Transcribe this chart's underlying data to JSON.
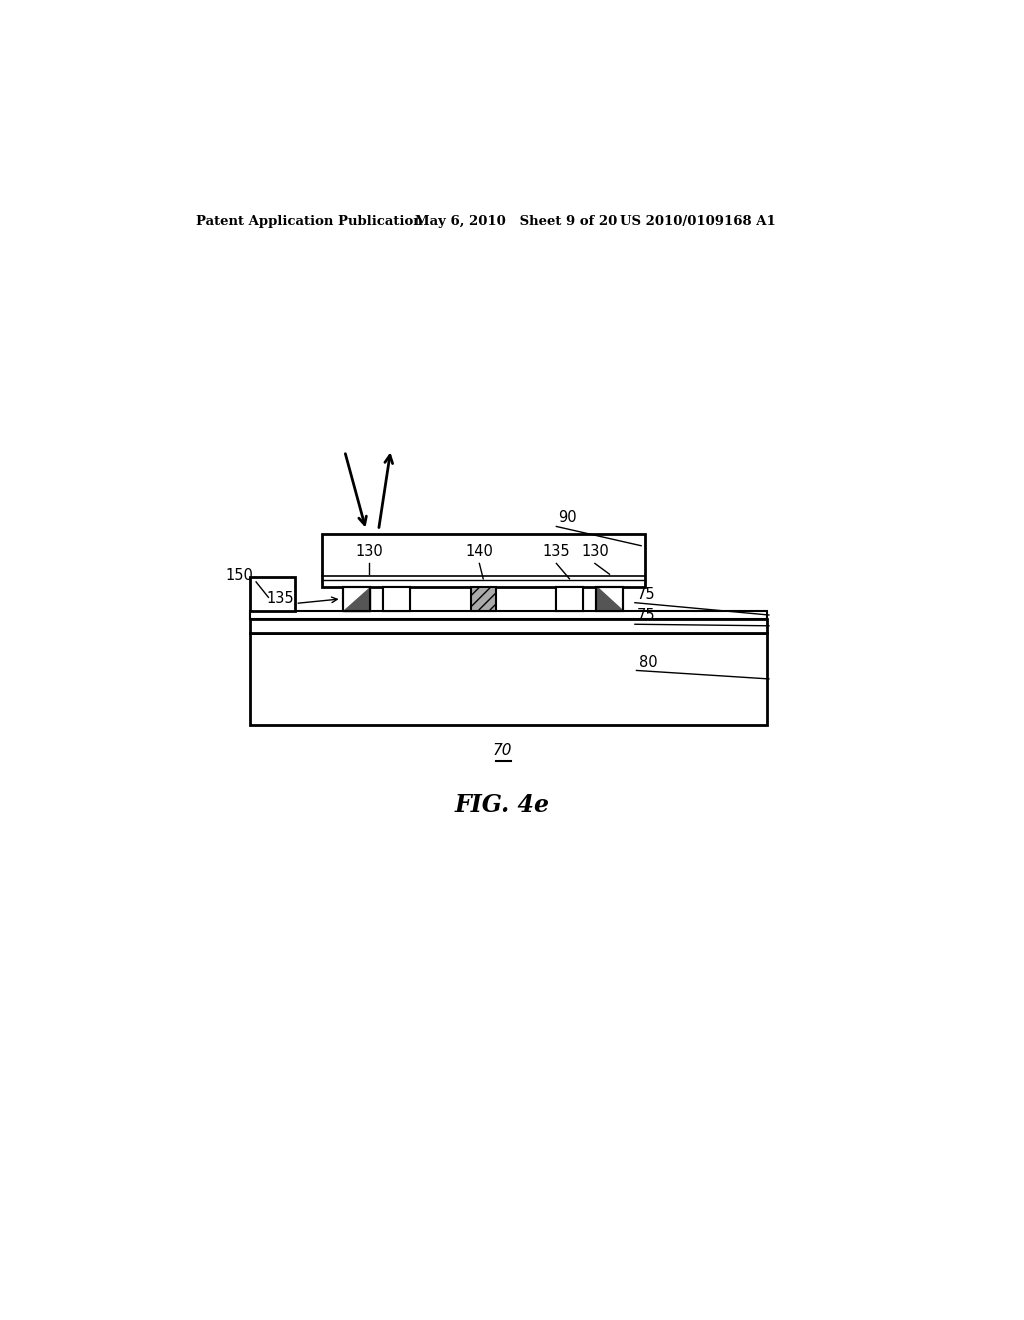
{
  "bg_color": "#ffffff",
  "header_left": "Patent Application Publication",
  "header_mid": "May 6, 2010   Sheet 9 of 20",
  "header_right": "US 2010/0109168 A1",
  "fig_label": "FIG. 4e",
  "label_70": "70",
  "label_75": "75",
  "label_80": "80",
  "label_90": "90",
  "label_130a": "130",
  "label_130b": "130",
  "label_135a": "135",
  "label_135b": "135",
  "label_140": "140",
  "label_150": "150"
}
